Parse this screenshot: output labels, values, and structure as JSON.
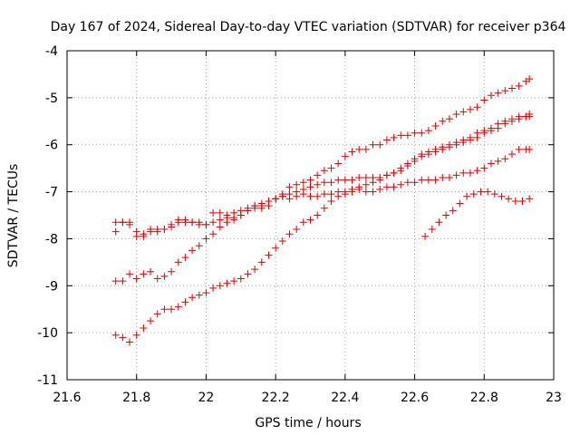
{
  "chart_data": {
    "type": "scatter",
    "title": "Day 167 of 2024, Sidereal Day-to-day VTEC variation (SDTVAR) for receiver p364",
    "xlabel": "GPS time / hours",
    "ylabel": "SDTVAR / TECUs",
    "xlim": [
      21.6,
      23.0
    ],
    "ylim": [
      -11,
      -4
    ],
    "xticks": [
      "21.6",
      "21.8",
      "22",
      "22.2",
      "22.4",
      "22.6",
      "22.8",
      "23"
    ],
    "yticks": [
      "-11",
      "-10",
      "-9",
      "-8",
      "-7",
      "-6",
      "-5",
      "-4"
    ],
    "grid": true,
    "marker": "plus",
    "color": "#e00000",
    "series": [
      {
        "x": [
          21.74,
          21.76,
          21.78,
          21.8,
          21.82,
          21.84,
          21.86,
          21.88,
          21.9,
          21.92,
          21.94,
          21.96,
          21.98,
          22.0,
          22.02,
          22.04,
          22.06,
          22.08,
          22.1,
          22.12,
          22.14,
          22.16,
          22.18,
          22.2,
          22.22,
          22.24,
          22.26,
          22.28,
          22.3,
          22.32,
          22.34,
          22.36,
          22.38,
          22.4,
          22.42,
          22.44,
          22.46,
          22.48,
          22.5,
          22.52,
          22.54,
          22.56,
          22.58,
          22.6,
          22.62,
          22.64,
          22.66,
          22.68,
          22.7,
          22.72,
          22.74,
          22.76,
          22.78,
          22.8,
          22.82,
          22.84,
          22.86,
          22.88,
          22.9,
          22.92,
          22.93
        ],
        "y": [
          -7.65,
          -7.65,
          -7.7,
          -7.95,
          -7.9,
          -7.8,
          -7.85,
          -7.8,
          -7.7,
          -7.6,
          -7.65,
          -7.65,
          -7.7,
          -7.7,
          -7.45,
          -7.45,
          -7.5,
          -7.45,
          -7.4,
          -7.35,
          -7.3,
          -7.35,
          -7.3,
          -7.15,
          -7.05,
          -6.9,
          -6.85,
          -6.8,
          -6.75,
          -6.65,
          -6.55,
          -6.5,
          -6.4,
          -6.25,
          -6.15,
          -6.1,
          -6.1,
          -6.0,
          -6.0,
          -5.9,
          -5.85,
          -5.8,
          -5.8,
          -5.75,
          -5.75,
          -5.7,
          -5.6,
          -5.5,
          -5.45,
          -5.35,
          -5.3,
          -5.25,
          -5.2,
          -5.05,
          -4.95,
          -4.9,
          -4.85,
          -4.8,
          -4.75,
          -4.65,
          -4.6
        ]
      },
      {
        "x": [
          21.74,
          21.76,
          21.78,
          21.8,
          21.82,
          21.84,
          21.86,
          21.88,
          21.9,
          21.92,
          21.94,
          21.96,
          21.98,
          22.0,
          22.02,
          22.04,
          22.06,
          22.08,
          22.1,
          22.12,
          22.14,
          22.16,
          22.18,
          22.2,
          22.22,
          22.24,
          22.26,
          22.28,
          22.3,
          22.32,
          22.34,
          22.36,
          22.38,
          22.4,
          22.42,
          22.44,
          22.46,
          22.48,
          22.5,
          22.52,
          22.54,
          22.56,
          22.58,
          22.6,
          22.62,
          22.64,
          22.66,
          22.68,
          22.7,
          22.72,
          22.74,
          22.76,
          22.78,
          22.8,
          22.82,
          22.84,
          22.86,
          22.88,
          22.9,
          22.92,
          22.93
        ],
        "y": [
          -7.85,
          -7.65,
          -7.65,
          -7.85,
          -7.95,
          -7.85,
          -7.8,
          -7.8,
          -7.75,
          -7.65,
          -7.6,
          -7.65,
          -7.65,
          -7.7,
          -7.65,
          -7.6,
          -7.55,
          -7.55,
          -7.5,
          -7.4,
          -7.35,
          -7.3,
          -7.2,
          -7.15,
          -7.1,
          -7.05,
          -7.0,
          -6.95,
          -6.9,
          -6.85,
          -6.8,
          -6.8,
          -6.75,
          -6.75,
          -6.75,
          -6.7,
          -6.7,
          -6.7,
          -6.7,
          -6.65,
          -6.6,
          -6.55,
          -6.45,
          -6.35,
          -6.25,
          -6.2,
          -6.15,
          -6.1,
          -6.05,
          -6.0,
          -5.95,
          -5.9,
          -5.85,
          -5.75,
          -5.7,
          -5.65,
          -5.55,
          -5.5,
          -5.45,
          -5.4,
          -5.35
        ]
      },
      {
        "x": [
          21.74,
          21.76,
          21.78,
          21.8,
          21.82,
          21.84,
          21.86,
          21.88,
          21.9,
          21.92,
          21.94,
          21.96,
          21.98,
          22.0,
          22.02,
          22.04,
          22.06,
          22.08,
          22.1,
          22.12,
          22.14,
          22.16,
          22.18,
          22.2,
          22.22,
          22.24,
          22.26,
          22.28,
          22.3,
          22.32,
          22.34,
          22.36,
          22.38,
          22.4,
          22.42,
          22.44,
          22.46,
          22.48,
          22.5,
          22.52,
          22.54,
          22.56,
          22.58,
          22.6,
          22.62,
          22.64,
          22.66,
          22.68,
          22.7,
          22.72,
          22.74,
          22.76,
          22.78,
          22.8,
          22.82,
          22.84,
          22.86,
          22.88,
          22.9,
          22.92,
          22.93
        ],
        "y": [
          -8.9,
          -8.9,
          -8.75,
          -8.85,
          -8.75,
          -8.7,
          -8.85,
          -8.8,
          -8.7,
          -8.5,
          -8.4,
          -8.25,
          -8.15,
          -8.0,
          -7.9,
          -7.75,
          -7.65,
          -7.6,
          -7.5,
          -7.4,
          -7.3,
          -7.25,
          -7.2,
          -7.15,
          -7.1,
          -7.15,
          -7.1,
          -7.05,
          -7.1,
          -7.1,
          -7.05,
          -7.05,
          -7.0,
          -7.0,
          -6.95,
          -6.9,
          -6.85,
          -6.8,
          -6.75,
          -6.65,
          -6.6,
          -6.5,
          -6.4,
          -6.3,
          -6.2,
          -6.15,
          -6.1,
          -6.05,
          -6.0,
          -5.95,
          -5.9,
          -5.85,
          -5.75,
          -5.7,
          -5.65,
          -5.55,
          -5.5,
          -5.45,
          -5.4,
          -5.4,
          -5.4
        ]
      },
      {
        "x": [
          21.74,
          21.76,
          21.78,
          21.8,
          21.82,
          21.84,
          21.86,
          21.88,
          21.9,
          21.92,
          21.94,
          21.96,
          21.98,
          22.0,
          22.02,
          22.04,
          22.06,
          22.08,
          22.1,
          22.12,
          22.14,
          22.16,
          22.18,
          22.2,
          22.22,
          22.24,
          22.26,
          22.28,
          22.3,
          22.32,
          22.34,
          22.36,
          22.38,
          22.4,
          22.42,
          22.44,
          22.46,
          22.48,
          22.5,
          22.52,
          22.54,
          22.56,
          22.58,
          22.6,
          22.62,
          22.64,
          22.66,
          22.68,
          22.7,
          22.72,
          22.74,
          22.76,
          22.78,
          22.8,
          22.82,
          22.84,
          22.86,
          22.88,
          22.9,
          22.92,
          22.93
        ],
        "y": [
          -10.05,
          -10.1,
          -10.2,
          -10.05,
          -9.9,
          -9.75,
          -9.6,
          -9.5,
          -9.5,
          -9.45,
          -9.35,
          -9.25,
          -9.2,
          -9.15,
          -9.05,
          -9.0,
          -8.95,
          -8.9,
          -8.85,
          -8.75,
          -8.65,
          -8.5,
          -8.35,
          -8.2,
          -8.05,
          -7.9,
          -7.8,
          -7.65,
          -7.6,
          -7.5,
          -7.35,
          -7.2,
          -7.1,
          -7.05,
          -7.0,
          -6.95,
          -7.0,
          -7.0,
          -6.95,
          -6.9,
          -6.9,
          -6.85,
          -6.8,
          -6.8,
          -6.75,
          -6.75,
          -6.75,
          -6.7,
          -6.7,
          -6.65,
          -6.6,
          -6.6,
          -6.55,
          -6.5,
          -6.4,
          -6.35,
          -6.3,
          -6.2,
          -6.1,
          -6.1,
          -6.1
        ]
      },
      {
        "x": [
          22.63,
          22.65,
          22.67,
          22.69,
          22.71,
          22.73,
          22.75,
          22.77,
          22.79,
          22.81,
          22.83,
          22.85,
          22.87,
          22.89,
          22.91,
          22.93
        ],
        "y": [
          -7.95,
          -7.8,
          -7.65,
          -7.5,
          -7.4,
          -7.25,
          -7.1,
          -7.05,
          -7.0,
          -7.0,
          -7.05,
          -7.1,
          -7.15,
          -7.2,
          -7.2,
          -7.15
        ]
      }
    ]
  }
}
